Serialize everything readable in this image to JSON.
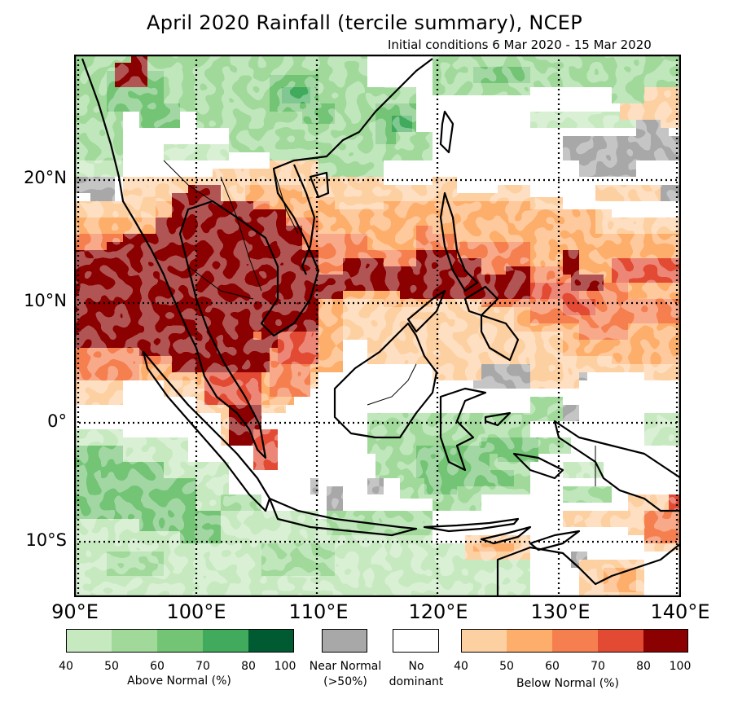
{
  "title": "April 2020 Rainfall (tercile summary), NCEP",
  "subtitle": "Initial conditions 6 Mar 2020 - 15 Mar 2020",
  "map": {
    "lon_range": [
      90,
      140
    ],
    "lat_range": [
      -14.5,
      30
    ],
    "lat_labels": [
      "20°N",
      "10°N",
      "0°",
      "10°S"
    ],
    "lon_labels": [
      "90°E",
      "100°E",
      "110°E",
      "120°E",
      "130°E",
      "140°E"
    ],
    "regions": [
      {
        "name": "south-china-green",
        "category": "above-normal-50-60"
      },
      {
        "name": "indochina-dark-red",
        "category": "below-normal-80-100"
      },
      {
        "name": "philippines-red",
        "category": "below-normal-70-80"
      },
      {
        "name": "sumatra-equatorial-red",
        "category": "below-normal-70-80"
      },
      {
        "name": "java-sea-green",
        "category": "above-normal-50-60"
      },
      {
        "name": "indian-ocean-green",
        "category": "above-normal-50-60"
      },
      {
        "name": "borneo-grey",
        "category": "near-normal"
      },
      {
        "name": "pacific-grey",
        "category": "near-normal"
      },
      {
        "name": "pacific-orange",
        "category": "below-normal-50-60"
      }
    ]
  },
  "legend": {
    "above": {
      "title": "Above Normal (%)",
      "ticks": [
        "40",
        "50",
        "60",
        "70",
        "80",
        "100"
      ],
      "colors": [
        "#c7e9c0",
        "#a1d99b",
        "#74c476",
        "#41ab5d",
        "#005a32"
      ]
    },
    "near": {
      "line1": "Near Normal",
      "line2": "(>50%)",
      "color": "#a9a8a9"
    },
    "none": {
      "line1": "No",
      "line2": "dominant",
      "color": "#ffffff"
    },
    "below": {
      "title": "Below Normal (%)",
      "ticks": [
        "40",
        "50",
        "60",
        "70",
        "80",
        "100"
      ],
      "colors": [
        "#fdd0a2",
        "#fdae6b",
        "#f57f4f",
        "#e34a33",
        "#8b0000"
      ]
    }
  }
}
